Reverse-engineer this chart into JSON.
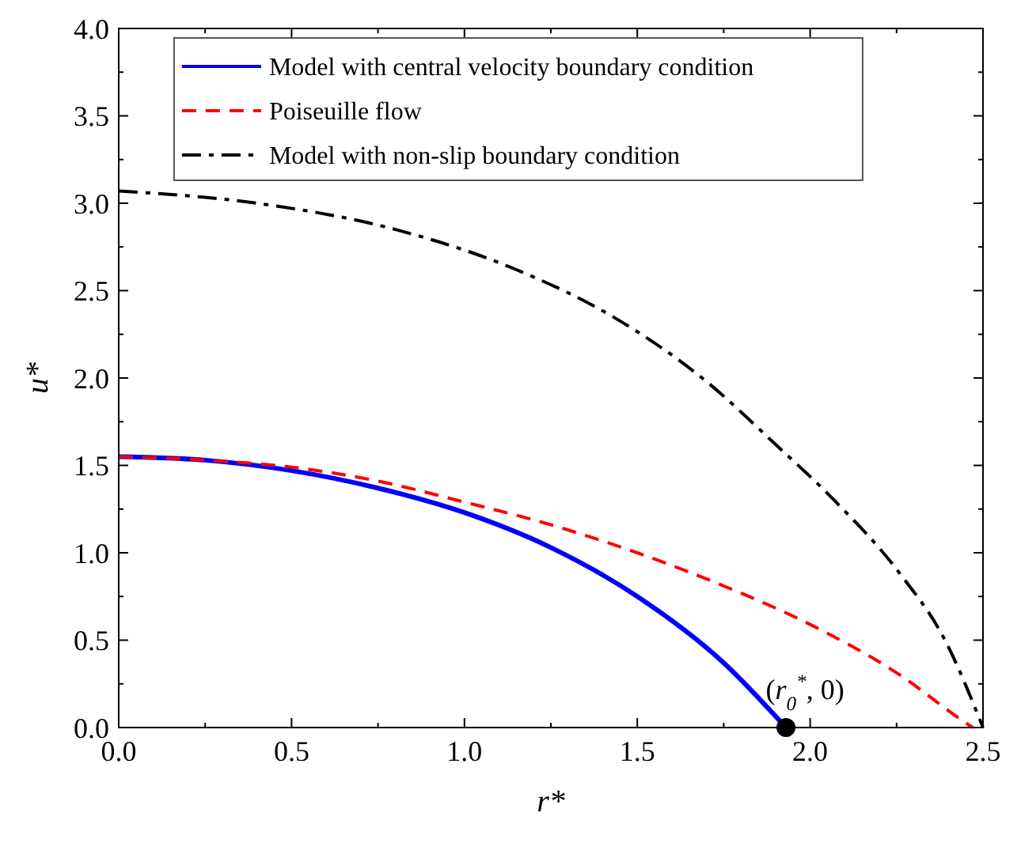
{
  "chart_data": {
    "type": "line",
    "xlabel": "r*",
    "ylabel": "u*",
    "xlim": [
      0,
      2.5
    ],
    "ylim": [
      0,
      4
    ],
    "xticks": [
      "0.0",
      {
        "value": 0.25,
        "label": null
      },
      {
        "value": 0.5,
        "label": "0.5"
      },
      {
        "value": 0.75,
        "label": null
      },
      {
        "value": 1,
        "label": "1.0"
      },
      {
        "value": 1.25,
        "label": null
      },
      {
        "value": 1.5,
        "label": "1.5"
      },
      {
        "value": 1.75,
        "label": null
      },
      {
        "value": 2,
        "label": "2.0"
      },
      {
        "value": 2.25,
        "label": null
      },
      {
        "value": 2.5,
        "label": "2.5"
      }
    ],
    "yticks": [
      {
        "value": 0,
        "label": "0.0"
      },
      {
        "value": 0.25,
        "label": null
      },
      {
        "value": 0.5,
        "label": "0.5"
      },
      {
        "value": 0.75,
        "label": null
      },
      {
        "value": 1,
        "label": "1.0"
      },
      {
        "value": 1.25,
        "label": null
      },
      {
        "value": 1.5,
        "label": "1.5"
      },
      {
        "value": 1.75,
        "label": null
      },
      {
        "value": 2,
        "label": "2.0"
      },
      {
        "value": 2.25,
        "label": null
      },
      {
        "value": 2.5,
        "label": "2.5"
      },
      {
        "value": 2.75,
        "label": null
      },
      {
        "value": 3,
        "label": "3.0"
      },
      {
        "value": 3.25,
        "label": null
      },
      {
        "value": 3.5,
        "label": "3.5"
      },
      {
        "value": 3.75,
        "label": null
      },
      {
        "value": 4,
        "label": "4.0"
      }
    ],
    "grid": false,
    "legend": "top left",
    "series": [
      {
        "name": "Model with central velocity boundary condition",
        "color": "#0000ff",
        "line_style": "solid",
        "x": [
          0,
          0.25,
          0.5,
          0.75,
          1,
          1.25,
          1.5,
          1.75,
          1.93
        ],
        "values": [
          1.55,
          1.53,
          1.47,
          1.37,
          1.23,
          1.03,
          0.75,
          0.37,
          0
        ]
      },
      {
        "name": "Poiseuille flow",
        "color": "#ff0000",
        "line_style": "dashed",
        "x": [
          0,
          0.25,
          0.5,
          0.75,
          1,
          1.25,
          1.5,
          1.75,
          2,
          2.26,
          2.44,
          2.47
        ],
        "values": [
          1.55,
          1.53,
          1.49,
          1.41,
          1.29,
          1.16,
          1.0,
          0.81,
          0.59,
          0.3,
          0.04,
          0
        ]
      },
      {
        "name": "Model with non-slip boundary condition",
        "color": "#000000",
        "line_style": "dashdot",
        "x": [
          0,
          0.4,
          0.8,
          1.15,
          1.43,
          1.7,
          1.9,
          2.07,
          2.26,
          2.39,
          2.5
        ],
        "values": [
          3.07,
          3.0,
          2.85,
          2.62,
          2.35,
          1.98,
          1.62,
          1.3,
          0.88,
          0.5,
          0
        ]
      },
      {
        "type": "scatter",
        "color": "#000000",
        "marker": "circle",
        "x": [
          1.93
        ],
        "values": [
          0
        ]
      }
    ],
    "annotations": [
      {
        "text": "(r$_{0}$$^{*}$, 0)",
        "x": 1.93,
        "y": 0
      }
    ]
  }
}
